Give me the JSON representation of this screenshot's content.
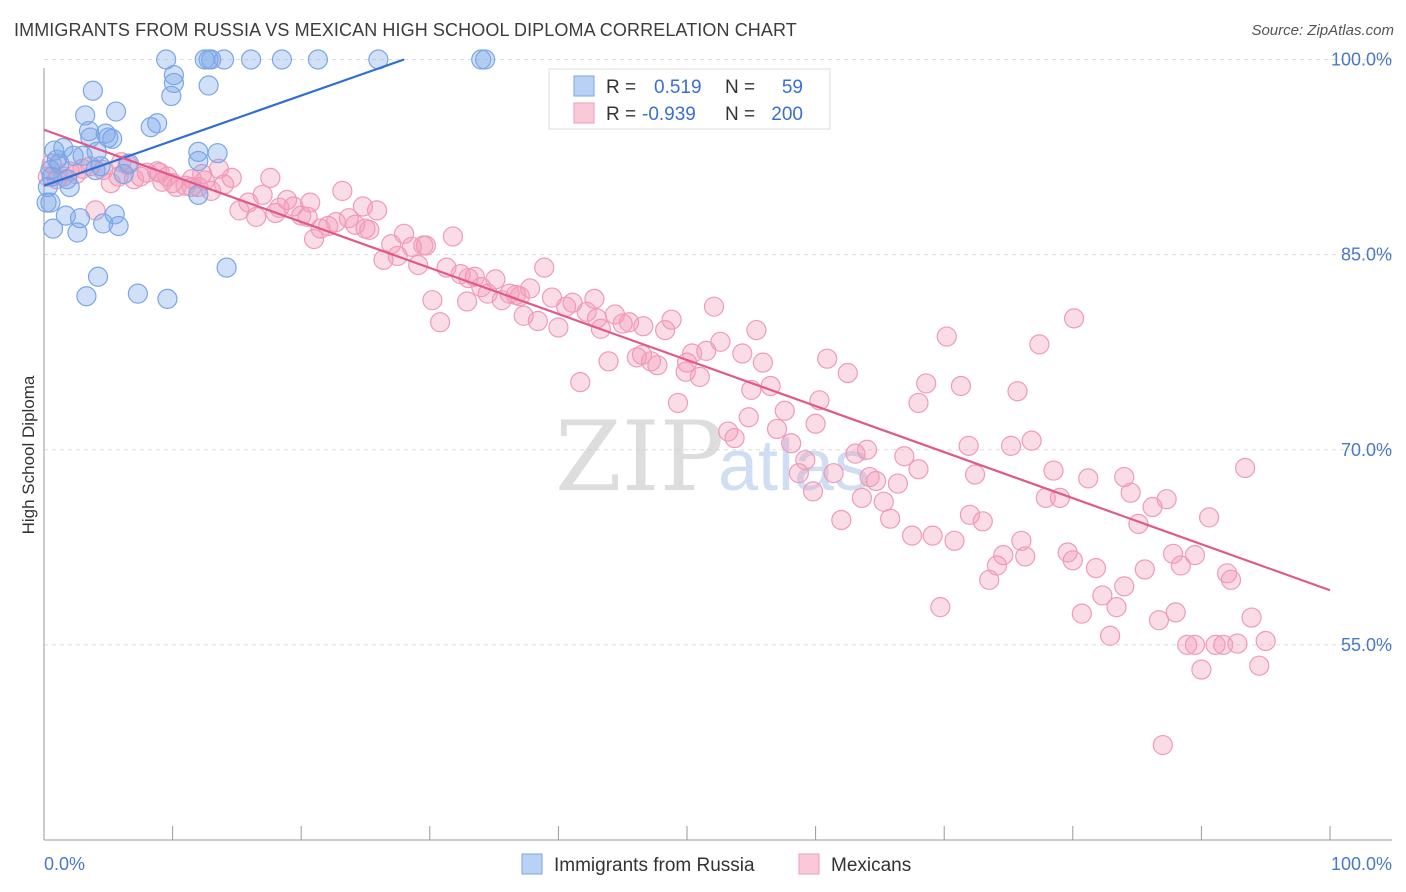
{
  "chart_data": {
    "type": "scatter",
    "title": "IMMIGRANTS FROM RUSSIA VS MEXICAN HIGH SCHOOL DIPLOMA CORRELATION CHART",
    "source": "Source: ZipAtlas.com",
    "ylabel": "High School Diploma",
    "xlabel": "",
    "xlim": [
      0,
      100
    ],
    "ylim": [
      40,
      101.5
    ],
    "y_ticks": [
      {
        "value": 100,
        "label": "100.0%"
      },
      {
        "value": 85,
        "label": "85.0%"
      },
      {
        "value": 70,
        "label": "70.0%"
      },
      {
        "value": 55,
        "label": "55.0%"
      }
    ],
    "x_tick_labels": {
      "left": "0.0%",
      "right": "100.0%"
    },
    "watermark": {
      "zip": "ZIP",
      "atlas": "atlas"
    },
    "legend": {
      "r_label": "R =",
      "n_label": "N =",
      "entries": [
        {
          "series": "Immigrants from Russia",
          "r": "0.519",
          "n": "59"
        },
        {
          "series": "Mexicans",
          "r": "-0.939",
          "n": "200"
        }
      ]
    },
    "series": [
      {
        "name": "Immigrants from Russia",
        "color": "#7aa6e8",
        "line_color": "#2f6fd1",
        "trend": {
          "x": [
            0,
            28
          ],
          "y": [
            90.3,
            100.0
          ]
        },
        "points": [
          [
            0.3,
            90.2
          ],
          [
            0.5,
            89.0
          ],
          [
            0.5,
            91.5
          ],
          [
            0.7,
            87.0
          ],
          [
            0.8,
            93.0
          ],
          [
            1.0,
            92.3
          ],
          [
            1.2,
            92.0
          ],
          [
            1.5,
            93.2
          ],
          [
            1.7,
            88.0
          ],
          [
            1.8,
            90.8
          ],
          [
            2.0,
            90.2
          ],
          [
            2.3,
            92.6
          ],
          [
            2.6,
            86.7
          ],
          [
            2.8,
            87.8
          ],
          [
            3.0,
            92.6
          ],
          [
            3.2,
            95.7
          ],
          [
            3.3,
            81.8
          ],
          [
            3.5,
            94.5
          ],
          [
            3.6,
            94.0
          ],
          [
            3.8,
            97.6
          ],
          [
            4.0,
            91.5
          ],
          [
            4.1,
            92.9
          ],
          [
            4.2,
            83.3
          ],
          [
            4.4,
            91.8
          ],
          [
            4.6,
            87.4
          ],
          [
            4.8,
            94.3
          ],
          [
            5.0,
            94.0
          ],
          [
            5.3,
            93.9
          ],
          [
            5.5,
            88.1
          ],
          [
            5.6,
            96.0
          ],
          [
            5.8,
            87.2
          ],
          [
            6.2,
            91.2
          ],
          [
            6.6,
            92.0
          ],
          [
            7.3,
            82.0
          ],
          [
            8.3,
            94.8
          ],
          [
            8.8,
            95.1
          ],
          [
            9.6,
            81.6
          ],
          [
            9.5,
            100.0
          ],
          [
            10.1,
            98.2
          ],
          [
            10.1,
            98.8
          ],
          [
            12.0,
            92.9
          ],
          [
            12.0,
            92.2
          ],
          [
            12.0,
            89.6
          ],
          [
            12.5,
            100.0
          ],
          [
            12.8,
            100.0
          ],
          [
            12.8,
            98.0
          ],
          [
            13.0,
            100.0
          ],
          [
            13.5,
            92.8
          ],
          [
            14.0,
            100.0
          ],
          [
            14.2,
            84.0
          ],
          [
            16.1,
            100.0
          ],
          [
            18.5,
            100.0
          ],
          [
            21.3,
            100.0
          ],
          [
            26.0,
            100.0
          ],
          [
            34.0,
            100.0
          ],
          [
            34.3,
            100.0
          ],
          [
            0.2,
            89.0
          ],
          [
            0.6,
            91.0
          ],
          [
            9.9,
            97.2
          ]
        ]
      },
      {
        "name": "Mexicans",
        "color": "#f19ab8",
        "line_color": "#e0588c",
        "trend": {
          "x": [
            0,
            100
          ],
          "y": [
            94.6,
            59.2
          ]
        },
        "points": [
          [
            0.3,
            91.0
          ],
          [
            0.6,
            92.0
          ],
          [
            1.0,
            90.8
          ],
          [
            1.5,
            91.0
          ],
          [
            2.0,
            91.4
          ],
          [
            2.5,
            91.2
          ],
          [
            3.0,
            91.6
          ],
          [
            3.6,
            91.8
          ],
          [
            4.0,
            88.4
          ],
          [
            4.6,
            91.5
          ],
          [
            5.2,
            90.5
          ],
          [
            5.8,
            91.0
          ],
          [
            6.5,
            91.9
          ],
          [
            7.0,
            90.8
          ],
          [
            7.5,
            91.0
          ],
          [
            8.0,
            91.3
          ],
          [
            8.8,
            91.4
          ],
          [
            9.2,
            90.6
          ],
          [
            9.6,
            91.0
          ],
          [
            10.3,
            90.2
          ],
          [
            11.0,
            90.3
          ],
          [
            11.5,
            90.8
          ],
          [
            12.0,
            90.2
          ],
          [
            12.5,
            90.7
          ],
          [
            13.0,
            89.9
          ],
          [
            13.6,
            91.6
          ],
          [
            14.0,
            90.4
          ],
          [
            14.6,
            90.9
          ],
          [
            15.2,
            88.4
          ],
          [
            15.9,
            89.0
          ],
          [
            16.5,
            87.9
          ],
          [
            17.0,
            89.6
          ],
          [
            17.6,
            90.9
          ],
          [
            18.3,
            88.6
          ],
          [
            18.9,
            89.2
          ],
          [
            19.4,
            88.7
          ],
          [
            20.0,
            88.0
          ],
          [
            20.5,
            87.9
          ],
          [
            21.0,
            86.2
          ],
          [
            21.5,
            87.0
          ],
          [
            22.1,
            87.2
          ],
          [
            22.7,
            87.5
          ],
          [
            23.2,
            89.9
          ],
          [
            23.7,
            87.8
          ],
          [
            24.2,
            87.3
          ],
          [
            24.8,
            88.7
          ],
          [
            25.3,
            86.9
          ],
          [
            25.9,
            88.4
          ],
          [
            26.4,
            84.6
          ],
          [
            27.0,
            85.8
          ],
          [
            27.5,
            84.9
          ],
          [
            28.0,
            86.6
          ],
          [
            28.6,
            85.6
          ],
          [
            29.1,
            84.2
          ],
          [
            29.7,
            85.7
          ],
          [
            30.2,
            81.5
          ],
          [
            30.8,
            79.8
          ],
          [
            31.3,
            84.0
          ],
          [
            31.8,
            86.4
          ],
          [
            32.4,
            83.5
          ],
          [
            32.9,
            81.4
          ],
          [
            33.5,
            83.3
          ],
          [
            34.0,
            82.5
          ],
          [
            34.5,
            82.0
          ],
          [
            35.1,
            83.1
          ],
          [
            35.6,
            81.5
          ],
          [
            36.2,
            82.0
          ],
          [
            36.7,
            81.9
          ],
          [
            37.3,
            80.3
          ],
          [
            37.8,
            82.4
          ],
          [
            38.4,
            79.9
          ],
          [
            38.9,
            84.0
          ],
          [
            39.5,
            81.7
          ],
          [
            40.0,
            79.4
          ],
          [
            40.6,
            81.0
          ],
          [
            41.1,
            81.3
          ],
          [
            41.7,
            75.2
          ],
          [
            42.2,
            80.6
          ],
          [
            42.8,
            81.6
          ],
          [
            43.3,
            79.3
          ],
          [
            43.9,
            76.8
          ],
          [
            44.4,
            80.4
          ],
          [
            45.0,
            79.7
          ],
          [
            45.5,
            79.8
          ],
          [
            46.1,
            77.1
          ],
          [
            46.6,
            79.5
          ],
          [
            47.2,
            76.8
          ],
          [
            47.7,
            76.5
          ],
          [
            48.3,
            79.2
          ],
          [
            48.8,
            80.0
          ],
          [
            49.3,
            73.6
          ],
          [
            49.9,
            76.0
          ],
          [
            50.4,
            77.4
          ],
          [
            51.0,
            75.6
          ],
          [
            51.5,
            77.6
          ],
          [
            52.1,
            81.0
          ],
          [
            52.6,
            78.3
          ],
          [
            53.2,
            71.4
          ],
          [
            53.7,
            70.9
          ],
          [
            54.3,
            77.4
          ],
          [
            54.8,
            72.5
          ],
          [
            55.4,
            79.2
          ],
          [
            55.9,
            76.7
          ],
          [
            56.5,
            74.9
          ],
          [
            57.0,
            71.6
          ],
          [
            57.6,
            73.0
          ],
          [
            58.1,
            70.5
          ],
          [
            58.7,
            68.2
          ],
          [
            59.2,
            69.2
          ],
          [
            59.8,
            66.8
          ],
          [
            60.3,
            73.8
          ],
          [
            60.9,
            77.0
          ],
          [
            61.4,
            68.2
          ],
          [
            62.0,
            64.6
          ],
          [
            62.5,
            75.9
          ],
          [
            63.1,
            69.7
          ],
          [
            63.6,
            66.3
          ],
          [
            64.2,
            67.9
          ],
          [
            64.7,
            67.6
          ],
          [
            65.3,
            66.0
          ],
          [
            65.8,
            64.7
          ],
          [
            66.4,
            67.4
          ],
          [
            66.9,
            69.5
          ],
          [
            67.5,
            63.4
          ],
          [
            68.0,
            73.6
          ],
          [
            68.6,
            75.1
          ],
          [
            69.1,
            63.4
          ],
          [
            69.7,
            57.9
          ],
          [
            70.2,
            78.7
          ],
          [
            70.8,
            63.0
          ],
          [
            71.3,
            74.9
          ],
          [
            71.9,
            70.3
          ],
          [
            72.4,
            68.1
          ],
          [
            73.0,
            64.5
          ],
          [
            73.5,
            60.0
          ],
          [
            74.1,
            61.1
          ],
          [
            74.6,
            61.9
          ],
          [
            75.2,
            70.3
          ],
          [
            75.7,
            74.5
          ],
          [
            76.3,
            61.8
          ],
          [
            76.8,
            70.7
          ],
          [
            77.4,
            78.1
          ],
          [
            77.9,
            66.3
          ],
          [
            78.5,
            68.4
          ],
          [
            79.0,
            66.3
          ],
          [
            79.6,
            62.1
          ],
          [
            80.1,
            80.1
          ],
          [
            80.7,
            57.4
          ],
          [
            81.2,
            67.8
          ],
          [
            81.8,
            60.9
          ],
          [
            82.3,
            58.8
          ],
          [
            82.9,
            55.7
          ],
          [
            83.4,
            57.9
          ],
          [
            84.0,
            67.9
          ],
          [
            84.5,
            66.7
          ],
          [
            85.1,
            64.3
          ],
          [
            85.6,
            60.8
          ],
          [
            86.2,
            65.6
          ],
          [
            86.7,
            56.9
          ],
          [
            87.3,
            66.2
          ],
          [
            87.8,
            62.0
          ],
          [
            88.4,
            61.1
          ],
          [
            88.9,
            55.0
          ],
          [
            89.5,
            61.9
          ],
          [
            90.0,
            53.1
          ],
          [
            90.6,
            64.8
          ],
          [
            91.1,
            55.0
          ],
          [
            91.7,
            55.0
          ],
          [
            92.3,
            60.0
          ],
          [
            92.8,
            55.1
          ],
          [
            93.4,
            68.6
          ],
          [
            93.9,
            57.1
          ],
          [
            94.5,
            53.4
          ],
          [
            95.0,
            55.3
          ],
          [
            87.0,
            47.3
          ],
          [
            11.5,
            90.2
          ],
          [
            12.3,
            91.2
          ],
          [
            9.0,
            91.3
          ],
          [
            6.0,
            92.1
          ],
          [
            10.0,
            90.5
          ],
          [
            18.0,
            88.2
          ],
          [
            20.7,
            89.0
          ],
          [
            25.0,
            87.0
          ],
          [
            29.5,
            85.7
          ],
          [
            33.0,
            83.2
          ],
          [
            37.0,
            81.8
          ],
          [
            43.0,
            80.1
          ],
          [
            46.5,
            77.3
          ],
          [
            50.0,
            76.7
          ],
          [
            55.0,
            74.6
          ],
          [
            60.0,
            72.0
          ],
          [
            64.0,
            70.0
          ],
          [
            68.0,
            68.5
          ],
          [
            72.0,
            65.0
          ],
          [
            76.0,
            63.0
          ],
          [
            80.0,
            61.5
          ],
          [
            84.0,
            59.5
          ],
          [
            88.0,
            57.5
          ],
          [
            92.0,
            60.5
          ],
          [
            89.5,
            55.0
          ]
        ]
      }
    ]
  }
}
